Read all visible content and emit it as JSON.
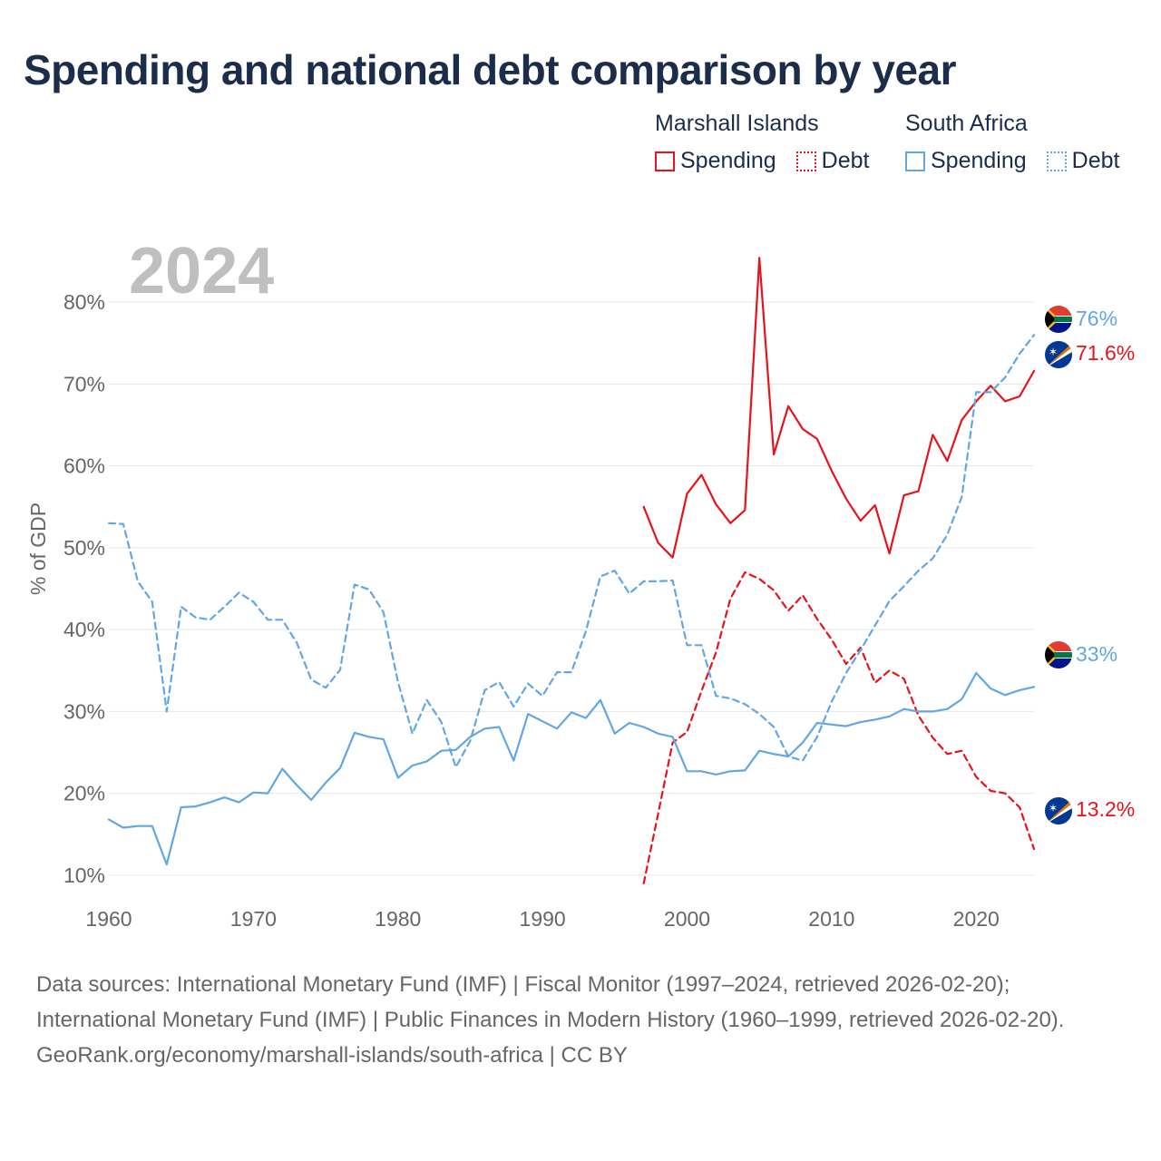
{
  "title": "Spending and national debt comparison by year",
  "legend": {
    "groups": [
      {
        "name": "Marshall Islands",
        "spending_label": "Spending",
        "debt_label": "Debt",
        "color": "#e8131a"
      },
      {
        "name": "South Africa",
        "spending_label": "Spending",
        "debt_label": "Debt",
        "color": "#62a6e4"
      }
    ]
  },
  "chart_data": {
    "type": "line",
    "year_label": "2024",
    "ylabel": "% of GDP",
    "xlim": [
      1960,
      2024
    ],
    "ylim": [
      5,
      87
    ],
    "x_ticks": [
      "1960",
      "1970",
      "1980",
      "1990",
      "2000",
      "2010",
      "2020"
    ],
    "y_ticks": [
      "10%",
      "20%",
      "30%",
      "40%",
      "50%",
      "60%",
      "70%",
      "80%"
    ],
    "series": [
      {
        "name": "Marshall Islands Spending",
        "country": "Marshall Islands",
        "kind": "spending",
        "color": "#e8131a",
        "dashed": false,
        "end_label": "71.6%",
        "points": [
          [
            1997,
            55
          ],
          [
            1998,
            50.6
          ],
          [
            1999,
            48.8
          ],
          [
            2000,
            56.6
          ],
          [
            2001,
            58.9
          ],
          [
            2002,
            55.3
          ],
          [
            2003,
            53
          ],
          [
            2004,
            54.6
          ],
          [
            2005,
            85.4
          ],
          [
            2006,
            61.4
          ],
          [
            2007,
            67.3
          ],
          [
            2008,
            64.5
          ],
          [
            2009,
            63.3
          ],
          [
            2010,
            59.4
          ],
          [
            2011,
            56
          ],
          [
            2012,
            53.3
          ],
          [
            2013,
            55.2
          ],
          [
            2014,
            49.3
          ],
          [
            2015,
            56.4
          ],
          [
            2016,
            56.9
          ],
          [
            2017,
            63.8
          ],
          [
            2018,
            60.6
          ],
          [
            2019,
            65.6
          ],
          [
            2020,
            67.9
          ],
          [
            2021,
            69.8
          ],
          [
            2022,
            67.9
          ],
          [
            2023,
            68.5
          ],
          [
            2024,
            71.6
          ]
        ]
      },
      {
        "name": "Marshall Islands Debt",
        "country": "Marshall Islands",
        "kind": "debt",
        "color": "#e8131a",
        "dashed": true,
        "end_label": "13.2%",
        "points": [
          [
            1997,
            9
          ],
          [
            1998,
            17.5
          ],
          [
            1999,
            26.2
          ],
          [
            2000,
            27.5
          ],
          [
            2001,
            32.5
          ],
          [
            2002,
            37.2
          ],
          [
            2003,
            43.8
          ],
          [
            2004,
            47
          ],
          [
            2005,
            46.2
          ],
          [
            2006,
            44.8
          ],
          [
            2007,
            42.3
          ],
          [
            2008,
            44.2
          ],
          [
            2009,
            41.3
          ],
          [
            2010,
            38.8
          ],
          [
            2011,
            35.8
          ],
          [
            2012,
            37.8
          ],
          [
            2013,
            33.5
          ],
          [
            2014,
            35
          ],
          [
            2015,
            34
          ],
          [
            2016,
            29.5
          ],
          [
            2017,
            26.8
          ],
          [
            2018,
            24.8
          ],
          [
            2019,
            25.2
          ],
          [
            2020,
            22
          ],
          [
            2021,
            20.3
          ],
          [
            2022,
            20
          ],
          [
            2023,
            18.3
          ],
          [
            2024,
            13.2
          ]
        ]
      },
      {
        "name": "South Africa Spending",
        "country": "South Africa",
        "kind": "spending",
        "color": "#62a6e4",
        "dashed": false,
        "end_label": "33%",
        "points": [
          [
            1960,
            16.8
          ],
          [
            1961,
            15.8
          ],
          [
            1962,
            16
          ],
          [
            1963,
            16
          ],
          [
            1964,
            11.3
          ],
          [
            1965,
            18.3
          ],
          [
            1966,
            18.4
          ],
          [
            1967,
            18.9
          ],
          [
            1968,
            19.5
          ],
          [
            1969,
            18.9
          ],
          [
            1970,
            20.1
          ],
          [
            1971,
            20
          ],
          [
            1972,
            23
          ],
          [
            1973,
            21
          ],
          [
            1974,
            19.2
          ],
          [
            1975,
            21.3
          ],
          [
            1976,
            23.1
          ],
          [
            1977,
            27.4
          ],
          [
            1978,
            26.9
          ],
          [
            1979,
            26.6
          ],
          [
            1980,
            21.9
          ],
          [
            1981,
            23.4
          ],
          [
            1982,
            23.9
          ],
          [
            1983,
            25.2
          ],
          [
            1984,
            25.3
          ],
          [
            1985,
            26.9
          ],
          [
            1986,
            27.9
          ],
          [
            1987,
            28.1
          ],
          [
            1988,
            24
          ],
          [
            1989,
            29.7
          ],
          [
            1990,
            28.8
          ],
          [
            1991,
            27.9
          ],
          [
            1992,
            29.9
          ],
          [
            1993,
            29.2
          ],
          [
            1994,
            31.4
          ],
          [
            1995,
            27.3
          ],
          [
            1996,
            28.6
          ],
          [
            1997,
            28.1
          ],
          [
            1998,
            27.3
          ],
          [
            1999,
            26.9
          ],
          [
            2000,
            22.7
          ],
          [
            2001,
            22.7
          ],
          [
            2002,
            22.3
          ],
          [
            2003,
            22.7
          ],
          [
            2004,
            22.8
          ],
          [
            2005,
            25.2
          ],
          [
            2006,
            24.8
          ],
          [
            2007,
            24.5
          ],
          [
            2008,
            26.2
          ],
          [
            2009,
            28.6
          ],
          [
            2010,
            28.4
          ],
          [
            2011,
            28.2
          ],
          [
            2012,
            28.7
          ],
          [
            2013,
            29
          ],
          [
            2014,
            29.4
          ],
          [
            2015,
            30.3
          ],
          [
            2016,
            30
          ],
          [
            2017,
            30
          ],
          [
            2018,
            30.3
          ],
          [
            2019,
            31.5
          ],
          [
            2020,
            34.7
          ],
          [
            2021,
            32.8
          ],
          [
            2022,
            32
          ],
          [
            2023,
            32.6
          ],
          [
            2024,
            33
          ]
        ]
      },
      {
        "name": "South Africa Debt",
        "country": "South Africa",
        "kind": "debt",
        "color": "#62a6e4",
        "dashed": true,
        "end_label": "76%",
        "points": [
          [
            1960,
            53
          ],
          [
            1961,
            52.9
          ],
          [
            1962,
            45.9
          ],
          [
            1963,
            43.4
          ],
          [
            1964,
            30
          ],
          [
            1965,
            42.8
          ],
          [
            1966,
            41.5
          ],
          [
            1967,
            41.2
          ],
          [
            1968,
            42.8
          ],
          [
            1969,
            44.5
          ],
          [
            1970,
            43.4
          ],
          [
            1971,
            41.2
          ],
          [
            1972,
            41.2
          ],
          [
            1973,
            38.4
          ],
          [
            1974,
            33.9
          ],
          [
            1975,
            32.9
          ],
          [
            1976,
            35.1
          ],
          [
            1977,
            45.5
          ],
          [
            1978,
            44.9
          ],
          [
            1979,
            42.1
          ],
          [
            1980,
            33.6
          ],
          [
            1981,
            27.3
          ],
          [
            1982,
            31.4
          ],
          [
            1983,
            28.7
          ],
          [
            1984,
            23.2
          ],
          [
            1985,
            26.4
          ],
          [
            1986,
            32.6
          ],
          [
            1987,
            33.6
          ],
          [
            1988,
            30.6
          ],
          [
            1989,
            33.4
          ],
          [
            1990,
            31.9
          ],
          [
            1991,
            34.8
          ],
          [
            1992,
            34.8
          ],
          [
            1993,
            39.8
          ],
          [
            1994,
            46.5
          ],
          [
            1995,
            47.2
          ],
          [
            1996,
            44.4
          ],
          [
            1997,
            45.9
          ],
          [
            1998,
            45.9
          ],
          [
            1999,
            46
          ],
          [
            2000,
            38.1
          ],
          [
            2001,
            38.1
          ],
          [
            2002,
            31.9
          ],
          [
            2003,
            31.6
          ],
          [
            2004,
            30.9
          ],
          [
            2005,
            29.7
          ],
          [
            2006,
            28.1
          ],
          [
            2007,
            24.5
          ],
          [
            2008,
            24
          ],
          [
            2009,
            26.9
          ],
          [
            2010,
            31.2
          ],
          [
            2011,
            34.7
          ],
          [
            2012,
            37.5
          ],
          [
            2013,
            40.5
          ],
          [
            2014,
            43.5
          ],
          [
            2015,
            45.3
          ],
          [
            2016,
            47.2
          ],
          [
            2017,
            48.7
          ],
          [
            2018,
            51.6
          ],
          [
            2019,
            56.2
          ],
          [
            2020,
            69
          ],
          [
            2021,
            69
          ],
          [
            2022,
            70.8
          ],
          [
            2023,
            73.7
          ],
          [
            2024,
            76
          ]
        ]
      }
    ]
  },
  "footer": {
    "sources": "Data sources: International Monetary Fund (IMF) | Fiscal Monitor (1997–2024, retrieved 2026-02-20); International Monetary Fund (IMF) | Public Finances in Modern History (1960–1999, retrieved 2026-02-20).",
    "credit": "GeoRank.org/economy/marshall-islands/south-africa | CC BY"
  }
}
